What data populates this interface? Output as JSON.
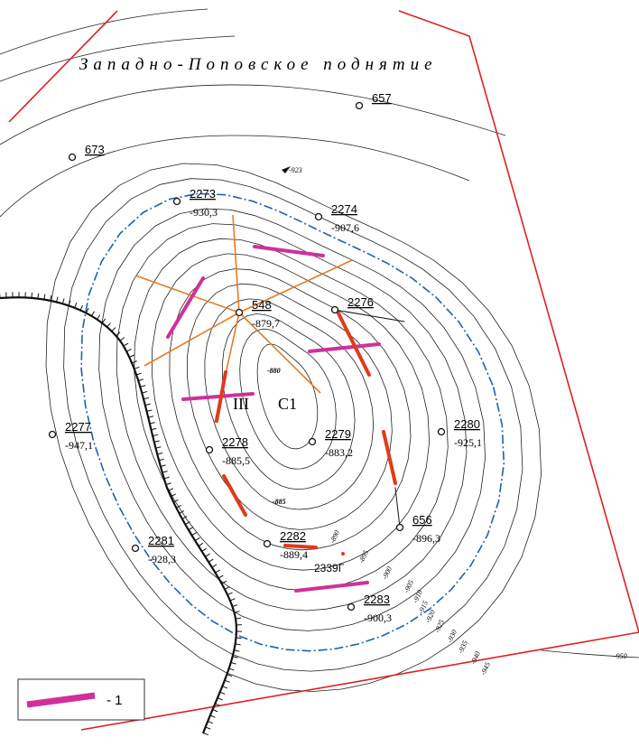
{
  "title": "Западно-Поповское поднятие",
  "wells": [
    {
      "name": "657"
    },
    {
      "name": "673"
    },
    {
      "name": "2273",
      "elevation": "-930,3"
    },
    {
      "name": "2274",
      "elevation": "-907,6"
    },
    {
      "name": "548",
      "elevation": "-879,7"
    },
    {
      "name": "2276"
    },
    {
      "name": "2277",
      "elevation": "-947,1"
    },
    {
      "name": "2278",
      "elevation": "-885,5"
    },
    {
      "name": "2279",
      "elevation": "-883,2"
    },
    {
      "name": "2280",
      "elevation": "-925,1"
    },
    {
      "name": "2281",
      "elevation": "-928,3"
    },
    {
      "name": "2282",
      "elevation": "-889,4"
    },
    {
      "name": "656",
      "elevation": "-896,3"
    },
    {
      "name": "2283",
      "elevation": "-900,3"
    },
    {
      "name": "2339Г"
    }
  ],
  "contour_labels": [
    "-923",
    "-880",
    "-885",
    "-890",
    "-895",
    "-900",
    "-905",
    "-910",
    "-915",
    "-920",
    "-925",
    "-930",
    "-935",
    "-940",
    "-945",
    "-950"
  ],
  "zone_labels": [
    "III",
    "С1"
  ],
  "legend": {
    "label": "- 1"
  }
}
